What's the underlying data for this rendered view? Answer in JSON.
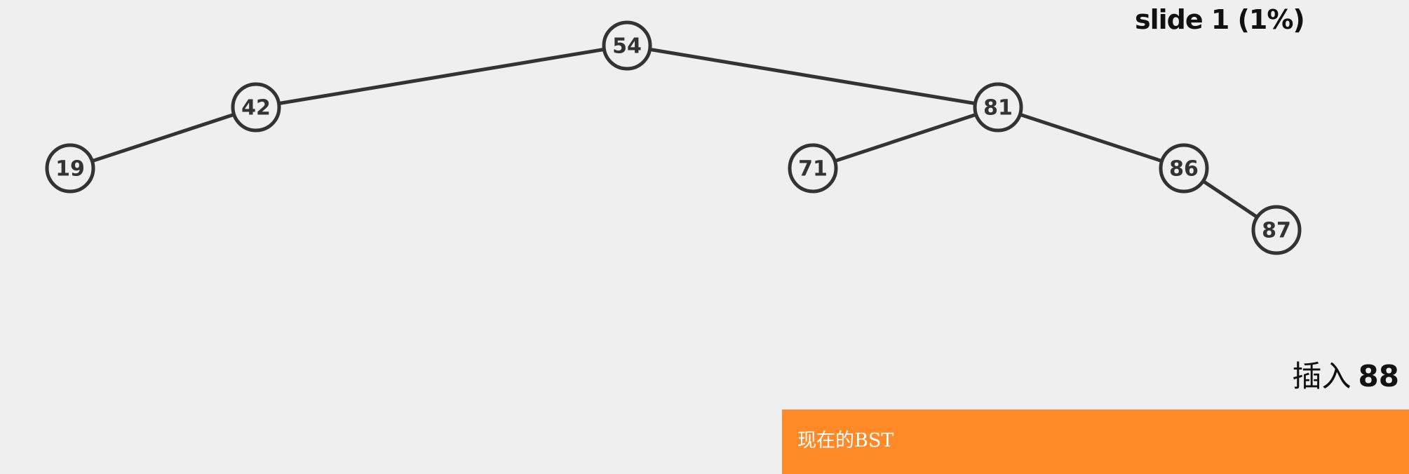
{
  "slide": {
    "status": "slide 1 (1%)"
  },
  "operation": {
    "verb": "插入",
    "value": "88"
  },
  "status_panel": {
    "text": "现在的BST",
    "color": "#ff8a27"
  },
  "tree": {
    "nodes": [
      {
        "id": "n54",
        "label": "54"
      },
      {
        "id": "n42",
        "label": "42"
      },
      {
        "id": "n81",
        "label": "81"
      },
      {
        "id": "n19",
        "label": "19"
      },
      {
        "id": "n71",
        "label": "71"
      },
      {
        "id": "n86",
        "label": "86"
      },
      {
        "id": "n87",
        "label": "87"
      }
    ],
    "edges": [
      {
        "from": "n54",
        "to": "n42"
      },
      {
        "from": "n54",
        "to": "n81"
      },
      {
        "from": "n42",
        "to": "n19"
      },
      {
        "from": "n81",
        "to": "n71"
      },
      {
        "from": "n81",
        "to": "n86"
      },
      {
        "from": "n86",
        "to": "n87"
      }
    ]
  }
}
